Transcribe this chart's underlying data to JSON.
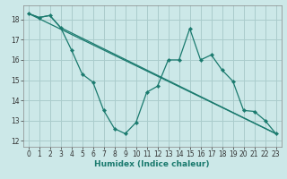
{
  "xlabel": "Humidex (Indice chaleur)",
  "background_color": "#cce8e8",
  "grid_color": "#aacccc",
  "line_color": "#1a7a6e",
  "xlim": [
    -0.5,
    23.5
  ],
  "ylim": [
    11.7,
    18.7
  ],
  "xticks": [
    0,
    1,
    2,
    3,
    4,
    5,
    6,
    7,
    8,
    9,
    10,
    11,
    12,
    13,
    14,
    15,
    16,
    17,
    18,
    19,
    20,
    21,
    22,
    23
  ],
  "yticks": [
    12,
    13,
    14,
    15,
    16,
    17,
    18
  ],
  "line1_x": [
    0,
    1,
    2,
    3,
    4,
    5,
    6,
    7,
    8,
    9,
    10,
    11,
    12,
    13,
    14,
    15,
    16,
    17,
    18,
    19,
    20,
    21,
    22,
    23
  ],
  "line1_y": [
    18.3,
    18.1,
    18.2,
    17.6,
    16.5,
    15.3,
    14.9,
    13.5,
    12.6,
    12.35,
    12.9,
    14.4,
    14.7,
    16.0,
    16.0,
    17.55,
    16.0,
    16.25,
    15.5,
    14.95,
    13.5,
    13.45,
    13.0,
    12.35
  ],
  "line2_x": [
    0,
    1,
    2,
    3,
    23
  ],
  "line2_y": [
    18.3,
    18.1,
    18.2,
    17.6,
    12.35
  ],
  "line3_x": [
    0,
    23
  ],
  "line3_y": [
    18.3,
    12.35
  ]
}
